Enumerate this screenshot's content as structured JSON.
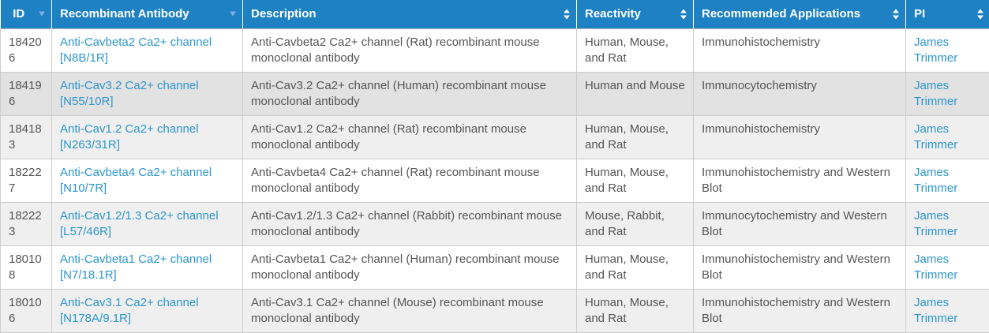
{
  "table": {
    "columns": [
      {
        "label": "ID",
        "sort": "desc"
      },
      {
        "label": "Recombinant Antibody",
        "sort": "desc"
      },
      {
        "label": "Description",
        "sort": "both"
      },
      {
        "label": "Reactivity",
        "sort": "both"
      },
      {
        "label": "Recommended Applications",
        "sort": "both"
      },
      {
        "label": "PI",
        "sort": "both"
      }
    ],
    "rows": [
      {
        "id": "184206",
        "antibody": "Anti-Cavbeta2 Ca2+ channel [N8B/1R]",
        "description": "Anti-Cavbeta2 Ca2+ channel (Rat) recombinant mouse monoclonal antibody",
        "reactivity": "Human, Mouse, and Rat",
        "applications": "Immunohistochemistry",
        "pi": "James Trimmer",
        "shaded": false,
        "highlighted": false
      },
      {
        "id": "184196",
        "antibody": "Anti-Cav3.2 Ca2+ channel [N55/10R]",
        "description": "Anti-Cav3.2 Ca2+ channel (Human) recombinant mouse monoclonal antibody",
        "reactivity": "Human and Mouse",
        "applications": "Immunocytochemistry",
        "pi": "James Trimmer",
        "shaded": false,
        "highlighted": true
      },
      {
        "id": "184183",
        "antibody": "Anti-Cav1.2 Ca2+ channel [N263/31R]",
        "description": "Anti-Cav1.2 Ca2+ channel (Rat) recombinant mouse monoclonal antibody",
        "reactivity": "Human, Mouse, and Rat",
        "applications": "Immunohistochemistry",
        "pi": "James Trimmer",
        "shaded": true,
        "highlighted": false
      },
      {
        "id": "182227",
        "antibody": "Anti-Cavbeta4 Ca2+ channel [N10/7R]",
        "description": "Anti-Cavbeta4 Ca2+ channel (Rat) recombinant mouse monoclonal antibody",
        "reactivity": "Human, Mouse, and Rat",
        "applications": "Immunohistochemistry and Western Blot",
        "pi": "James Trimmer",
        "shaded": false,
        "highlighted": false
      },
      {
        "id": "182223",
        "antibody": "Anti-Cav1.2/1.3 Ca2+ channel [L57/46R]",
        "description": "Anti-Cav1.2/1.3 Ca2+ channel (Rabbit) recombinant mouse monoclonal antibody",
        "reactivity": "Mouse, Rabbit, and Rat",
        "applications": "Immunocytochemistry and Western Blot",
        "pi": "James Trimmer",
        "shaded": true,
        "highlighted": false
      },
      {
        "id": "180108",
        "antibody": "Anti-Cavbeta1 Ca2+ channel [N7/18.1R]",
        "description": "Anti-Cavbeta1 Ca2+ channel (Human) recombinant mouse monoclonal antibody",
        "reactivity": "Human, Mouse, and Rat",
        "applications": "Immunohistochemistry and Western Blot",
        "pi": "James Trimmer",
        "shaded": false,
        "highlighted": false
      },
      {
        "id": "180106",
        "antibody": "Anti-Cav3.1 Ca2+ channel [N178A/9.1R]",
        "description": "Anti-Cav3.1 Ca2+ channel (Mouse) recombinant mouse monoclonal antibody",
        "reactivity": "Human, Mouse, and Rat",
        "applications": "Immunohistochemistry and Western Blot",
        "pi": "James Trimmer",
        "shaded": true,
        "highlighted": false
      }
    ]
  },
  "colors": {
    "header_bg": "#1e81c4",
    "header_text": "#ffffff",
    "sorted_arrow": "#7fb0df",
    "unsorted_arrow": "#ffffff",
    "link": "#2d96cc",
    "body_text": "#555555",
    "row_shaded_bg": "#efefef",
    "row_highlight_bg": "#e2e2e2",
    "border": "#cccccc"
  }
}
